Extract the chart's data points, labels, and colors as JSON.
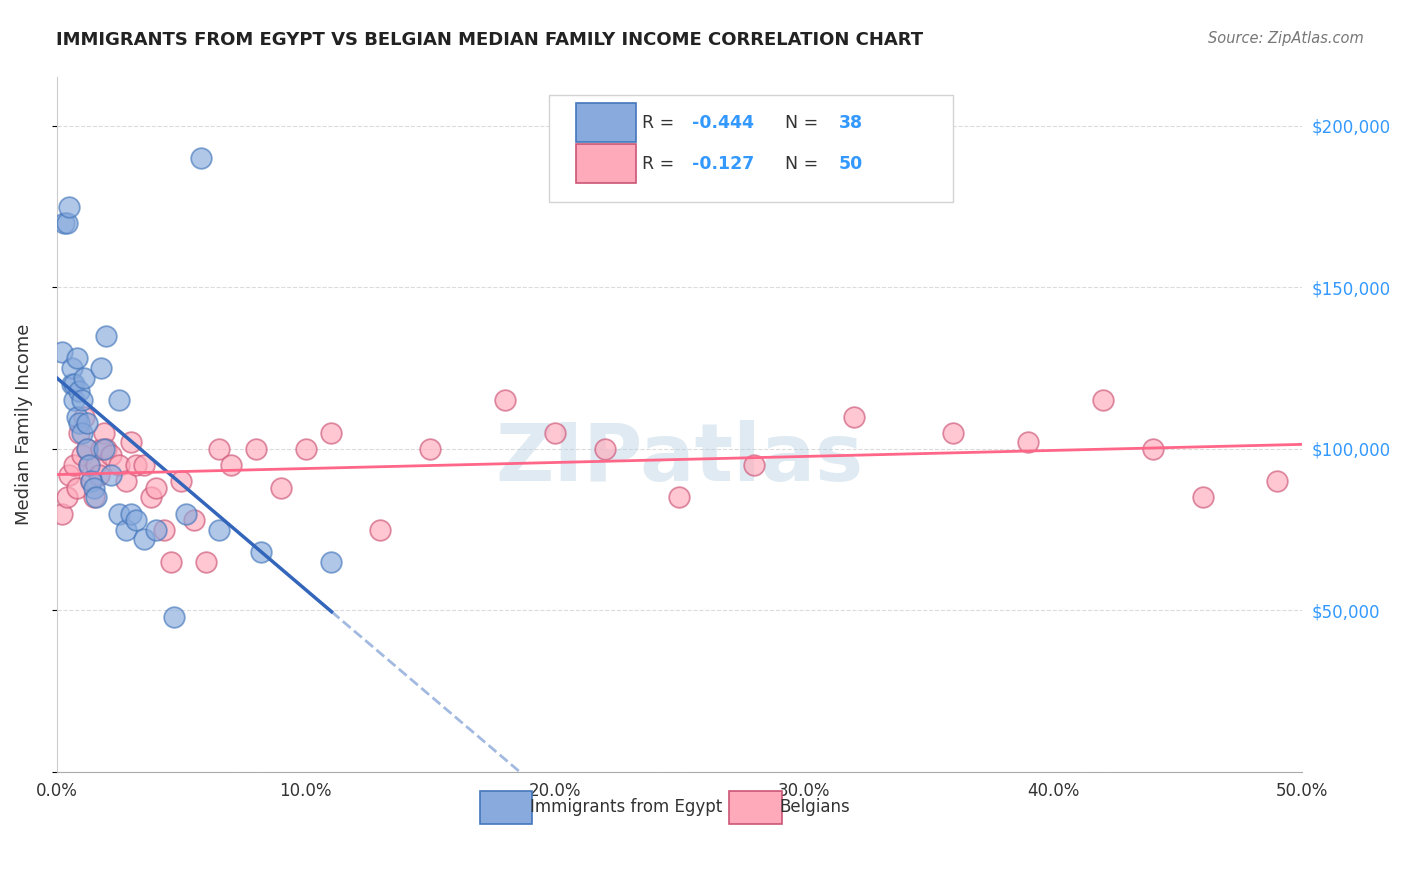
{
  "title": "IMMIGRANTS FROM EGYPT VS BELGIAN MEDIAN FAMILY INCOME CORRELATION CHART",
  "source": "Source: ZipAtlas.com",
  "ylabel": "Median Family Income",
  "y_ticks": [
    0,
    50000,
    100000,
    150000,
    200000
  ],
  "right_y_labels": [
    "",
    "$50,000",
    "$100,000",
    "$150,000",
    "$200,000"
  ],
  "x_ticks": [
    0.0,
    0.1,
    0.2,
    0.3,
    0.4,
    0.5
  ],
  "x_tick_labels": [
    "0.0%",
    "10.0%",
    "20.0%",
    "30.0%",
    "40.0%",
    "50.0%"
  ],
  "x_min": 0.0,
  "x_max": 0.5,
  "y_min": 0,
  "y_max": 215000,
  "blue_color": "#88aadd",
  "blue_edge_color": "#4477bb",
  "pink_color": "#ffaabb",
  "pink_edge_color": "#cc5577",
  "blue_line_color": "#3366bb",
  "pink_line_color": "#ff6688",
  "watermark_text": "ZIPatlas",
  "legend_r1": "-0.444",
  "legend_n1": "38",
  "legend_r2": "-0.127",
  "legend_n2": "50",
  "blue_points_x": [
    0.002,
    0.003,
    0.004,
    0.005,
    0.006,
    0.006,
    0.007,
    0.007,
    0.008,
    0.008,
    0.009,
    0.009,
    0.01,
    0.01,
    0.011,
    0.012,
    0.012,
    0.013,
    0.014,
    0.015,
    0.016,
    0.018,
    0.019,
    0.02,
    0.022,
    0.025,
    0.025,
    0.028,
    0.03,
    0.032,
    0.035,
    0.04,
    0.047,
    0.052,
    0.058,
    0.065,
    0.082,
    0.11
  ],
  "blue_points_y": [
    130000,
    170000,
    170000,
    175000,
    120000,
    125000,
    115000,
    120000,
    110000,
    128000,
    118000,
    108000,
    105000,
    115000,
    122000,
    108000,
    100000,
    95000,
    90000,
    88000,
    85000,
    125000,
    100000,
    135000,
    92000,
    80000,
    115000,
    75000,
    80000,
    78000,
    72000,
    75000,
    48000,
    80000,
    190000,
    75000,
    68000,
    65000
  ],
  "pink_points_x": [
    0.002,
    0.004,
    0.005,
    0.007,
    0.008,
    0.009,
    0.01,
    0.011,
    0.012,
    0.013,
    0.014,
    0.015,
    0.016,
    0.017,
    0.018,
    0.019,
    0.02,
    0.022,
    0.025,
    0.028,
    0.03,
    0.032,
    0.035,
    0.038,
    0.04,
    0.043,
    0.046,
    0.05,
    0.055,
    0.06,
    0.065,
    0.07,
    0.08,
    0.09,
    0.1,
    0.11,
    0.13,
    0.15,
    0.18,
    0.2,
    0.22,
    0.25,
    0.28,
    0.32,
    0.36,
    0.39,
    0.42,
    0.44,
    0.46,
    0.49
  ],
  "pink_points_y": [
    80000,
    85000,
    92000,
    95000,
    88000,
    105000,
    98000,
    110000,
    100000,
    95000,
    90000,
    85000,
    95000,
    92000,
    100000,
    105000,
    100000,
    98000,
    95000,
    90000,
    102000,
    95000,
    95000,
    85000,
    88000,
    75000,
    65000,
    90000,
    78000,
    65000,
    100000,
    95000,
    100000,
    88000,
    100000,
    105000,
    75000,
    100000,
    115000,
    105000,
    100000,
    85000,
    95000,
    110000,
    105000,
    102000,
    115000,
    100000,
    85000,
    90000
  ]
}
